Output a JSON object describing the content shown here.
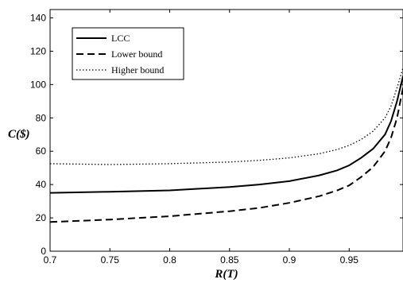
{
  "chart_data": {
    "type": "line",
    "title": "",
    "xlabel": "R(T)",
    "ylabel": "C($)",
    "xlim": [
      0.7,
      0.995
    ],
    "ylim": [
      0,
      145
    ],
    "xticks": [
      0.7,
      0.75,
      0.8,
      0.85,
      0.9,
      0.95
    ],
    "xtick_labels": [
      "0.7",
      "0.75",
      "0.8",
      "0.85",
      "0.9",
      "0.95"
    ],
    "yticks": [
      0,
      20,
      40,
      60,
      80,
      100,
      120,
      140
    ],
    "ytick_labels": [
      "0",
      "20",
      "40",
      "60",
      "80",
      "100",
      "120",
      "140"
    ],
    "grid": false,
    "legend_position": "top-left",
    "series": [
      {
        "name": "LCC",
        "style": "solid",
        "x": [
          0.7,
          0.75,
          0.8,
          0.85,
          0.875,
          0.9,
          0.925,
          0.94,
          0.95,
          0.96,
          0.97,
          0.98,
          0.985,
          0.99,
          0.995
        ],
        "y": [
          35,
          35.7,
          36.5,
          38.5,
          40,
          42,
          45.5,
          48.5,
          51.5,
          56,
          61.5,
          70,
          78,
          90,
          105
        ]
      },
      {
        "name": "Lower bound",
        "style": "dashed",
        "x": [
          0.7,
          0.75,
          0.8,
          0.85,
          0.875,
          0.9,
          0.925,
          0.94,
          0.95,
          0.96,
          0.97,
          0.98,
          0.985,
          0.99,
          0.995
        ],
        "y": [
          17.5,
          19,
          21,
          24,
          26,
          29,
          33,
          36.5,
          39.5,
          44.5,
          50.5,
          60,
          68,
          80,
          98
        ]
      },
      {
        "name": "Higher bound",
        "style": "dotted",
        "x": [
          0.7,
          0.75,
          0.8,
          0.85,
          0.875,
          0.9,
          0.925,
          0.94,
          0.95,
          0.96,
          0.97,
          0.98,
          0.985,
          0.99,
          0.995
        ],
        "y": [
          52.5,
          52,
          52.5,
          53.5,
          54.5,
          56,
          58.5,
          61,
          63.5,
          67,
          72,
          80,
          87,
          98,
          110
        ]
      }
    ]
  }
}
